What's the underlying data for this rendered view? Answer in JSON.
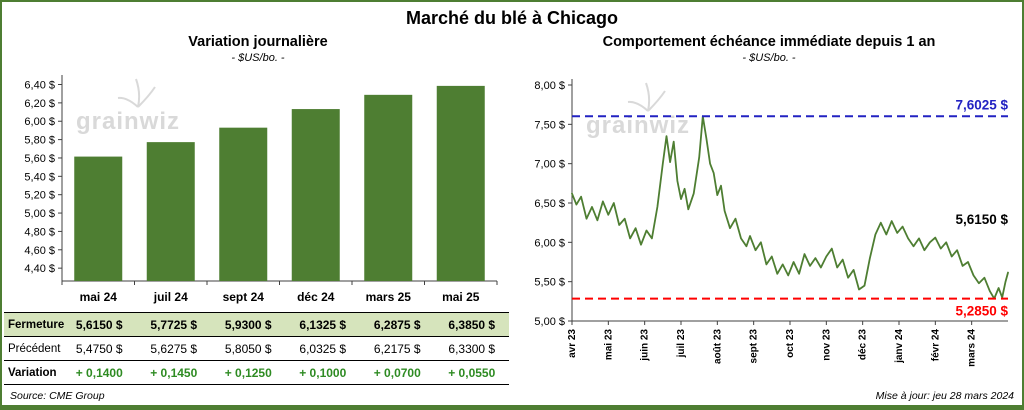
{
  "header": {
    "title": "Marché du blé à Chicago"
  },
  "brand": {
    "watermark": "grainwiz"
  },
  "table": {
    "rows": [
      {
        "label": "Fermeture",
        "values": [
          "5,6150 $",
          "5,7725 $",
          "5,9300 $",
          "6,1325 $",
          "6,2875 $",
          "6,3850 $"
        ]
      },
      {
        "label": "Précédent",
        "values": [
          "5,4750 $",
          "5,6275 $",
          "5,8050 $",
          "6,0325 $",
          "6,2175 $",
          "6,3300 $"
        ]
      },
      {
        "label": "Variation",
        "values": [
          "+ 0,1400",
          "+ 0,1450",
          "+ 0,1250",
          "+ 0,1000",
          "+ 0,0700",
          "+ 0,0550"
        ]
      }
    ]
  },
  "footer": {
    "source": "Source: CME Group",
    "updated": "Mise à jour: jeu 28 mars 2024"
  },
  "colors": {
    "green": "#4E7E32",
    "light_green": "#D6E4BC",
    "variation_green": "#2E8B22",
    "blue": "#2222C2",
    "red": "#FF0000",
    "watermark_gray": "#D9D9D9"
  },
  "chart_data": [
    {
      "type": "bar",
      "title": "Variation journalière",
      "subtitle": "- $US/bo. -",
      "categories": [
        "mai 24",
        "juil 24",
        "sept 24",
        "déc 24",
        "mars 25",
        "mai 25"
      ],
      "values": [
        5.615,
        5.7725,
        5.93,
        6.1325,
        6.2875,
        6.385
      ],
      "ylim": [
        4.26,
        6.46
      ],
      "yticks": {
        "min": 4.4,
        "max": 6.4,
        "step": 0.2
      },
      "ytick_format": "fr-dollar",
      "bar_color": "#4E7E32",
      "grid": false
    },
    {
      "type": "line",
      "title": "Comportement échéance immédiate depuis 1 an",
      "subtitle": "- $US/bo. -",
      "x_months": [
        "avr 23",
        "mai 23",
        "juin 23",
        "juil 23",
        "août 23",
        "sept 23",
        "oct 23",
        "nov 23",
        "déc 23",
        "janv 24",
        "févr 24",
        "mars 24"
      ],
      "ylim": [
        5.0,
        8.0
      ],
      "yticks": {
        "min": 5.0,
        "max": 8.0,
        "step": 0.5
      },
      "grid": false,
      "series": [
        {
          "name": "échéance immédiate",
          "color": "#4E7E32",
          "points": [
            [
              0,
              6.62
            ],
            [
              0.12,
              6.48
            ],
            [
              0.25,
              6.58
            ],
            [
              0.4,
              6.3
            ],
            [
              0.55,
              6.45
            ],
            [
              0.7,
              6.28
            ],
            [
              0.85,
              6.52
            ],
            [
              1.0,
              6.35
            ],
            [
              1.15,
              6.5
            ],
            [
              1.3,
              6.22
            ],
            [
              1.45,
              6.3
            ],
            [
              1.6,
              6.05
            ],
            [
              1.75,
              6.18
            ],
            [
              1.9,
              5.97
            ],
            [
              2.05,
              6.15
            ],
            [
              2.2,
              6.05
            ],
            [
              2.35,
              6.45
            ],
            [
              2.5,
              7.0
            ],
            [
              2.6,
              7.35
            ],
            [
              2.7,
              7.02
            ],
            [
              2.8,
              7.28
            ],
            [
              2.9,
              6.78
            ],
            [
              3.0,
              6.55
            ],
            [
              3.1,
              6.68
            ],
            [
              3.2,
              6.42
            ],
            [
              3.35,
              6.62
            ],
            [
              3.5,
              7.08
            ],
            [
              3.6,
              7.6025
            ],
            [
              3.7,
              7.32
            ],
            [
              3.8,
              7.0
            ],
            [
              3.9,
              6.88
            ],
            [
              4.0,
              6.6
            ],
            [
              4.1,
              6.72
            ],
            [
              4.2,
              6.4
            ],
            [
              4.35,
              6.18
            ],
            [
              4.5,
              6.3
            ],
            [
              4.65,
              6.05
            ],
            [
              4.8,
              5.95
            ],
            [
              4.9,
              6.08
            ],
            [
              5.05,
              5.9
            ],
            [
              5.2,
              6.0
            ],
            [
              5.35,
              5.72
            ],
            [
              5.5,
              5.82
            ],
            [
              5.65,
              5.6
            ],
            [
              5.8,
              5.72
            ],
            [
              5.95,
              5.58
            ],
            [
              6.1,
              5.75
            ],
            [
              6.25,
              5.6
            ],
            [
              6.4,
              5.85
            ],
            [
              6.55,
              5.7
            ],
            [
              6.7,
              5.8
            ],
            [
              6.85,
              5.68
            ],
            [
              7.0,
              5.82
            ],
            [
              7.15,
              5.92
            ],
            [
              7.3,
              5.68
            ],
            [
              7.45,
              5.78
            ],
            [
              7.6,
              5.55
            ],
            [
              7.75,
              5.65
            ],
            [
              7.9,
              5.4
            ],
            [
              8.05,
              5.45
            ],
            [
              8.2,
              5.8
            ],
            [
              8.35,
              6.1
            ],
            [
              8.5,
              6.25
            ],
            [
              8.65,
              6.1
            ],
            [
              8.8,
              6.27
            ],
            [
              8.95,
              6.12
            ],
            [
              9.1,
              6.2
            ],
            [
              9.25,
              6.05
            ],
            [
              9.4,
              5.95
            ],
            [
              9.55,
              6.05
            ],
            [
              9.7,
              5.9
            ],
            [
              9.85,
              6.0
            ],
            [
              10.0,
              6.06
            ],
            [
              10.15,
              5.92
            ],
            [
              10.3,
              6.0
            ],
            [
              10.45,
              5.82
            ],
            [
              10.6,
              5.9
            ],
            [
              10.75,
              5.7
            ],
            [
              10.9,
              5.75
            ],
            [
              11.05,
              5.58
            ],
            [
              11.2,
              5.48
            ],
            [
              11.35,
              5.55
            ],
            [
              11.5,
              5.38
            ],
            [
              11.62,
              5.285
            ],
            [
              11.74,
              5.42
            ],
            [
              11.84,
              5.3
            ],
            [
              11.93,
              5.5
            ],
            [
              12,
              5.615
            ]
          ]
        }
      ],
      "annotations": [
        {
          "type": "hline",
          "value": 7.6025,
          "label": "7,6025 $",
          "color": "#2222C2",
          "label_pos": "above"
        },
        {
          "type": "hline",
          "value": 5.285,
          "label": "5,2850 $",
          "color": "#FF0000",
          "label_pos": "below"
        },
        {
          "type": "last",
          "value": 5.615,
          "label": "5,6150 $",
          "color": "#000000",
          "label_y": 6.18
        }
      ]
    }
  ]
}
